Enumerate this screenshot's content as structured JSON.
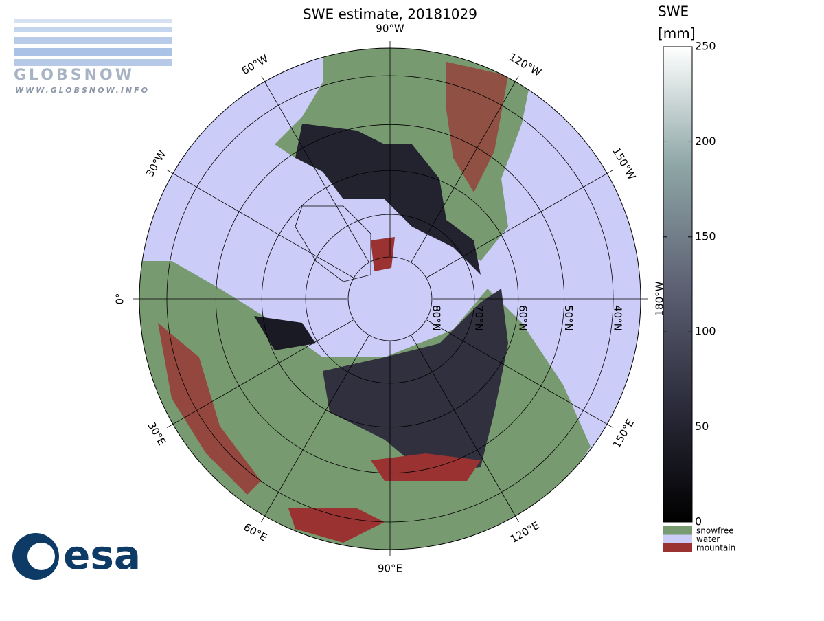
{
  "title": "SWE estimate, 20181029",
  "logo": {
    "globsnow": "GLOBSNOW",
    "url": "WWW.GLOBSNOW.INFO",
    "esa": "esa"
  },
  "colorbar": {
    "title": "SWE",
    "unit": "[mm]",
    "lim": [
      0,
      250
    ],
    "ticks": [
      0,
      50,
      100,
      150,
      200,
      250
    ],
    "classes": [
      {
        "label": "snowfree",
        "color": "#789a70"
      },
      {
        "label": "water",
        "color": "#ccccf8"
      },
      {
        "label": "mountain",
        "color": "#9a3232"
      }
    ]
  },
  "meridians": [
    {
      "value": 0,
      "label": "0°"
    },
    {
      "value": -30,
      "label": "30°W"
    },
    {
      "value": -60,
      "label": "60°W"
    },
    {
      "value": -90,
      "label": "90°W"
    },
    {
      "value": -120,
      "label": "120°W"
    },
    {
      "value": -150,
      "label": "150°W"
    },
    {
      "value": 180,
      "label": "180°W"
    },
    {
      "value": 150,
      "label": "150°E"
    },
    {
      "value": 120,
      "label": "120°E"
    },
    {
      "value": 90,
      "label": "90°E"
    },
    {
      "value": 60,
      "label": "60°E"
    },
    {
      "value": 30,
      "label": "30°E"
    }
  ],
  "parallels": [
    {
      "value": 80,
      "label": "80°N"
    },
    {
      "value": 70,
      "label": "70°N"
    },
    {
      "value": 60,
      "label": "60°N"
    },
    {
      "value": 50,
      "label": "50°N"
    },
    {
      "value": 40,
      "label": "40°N"
    }
  ]
}
